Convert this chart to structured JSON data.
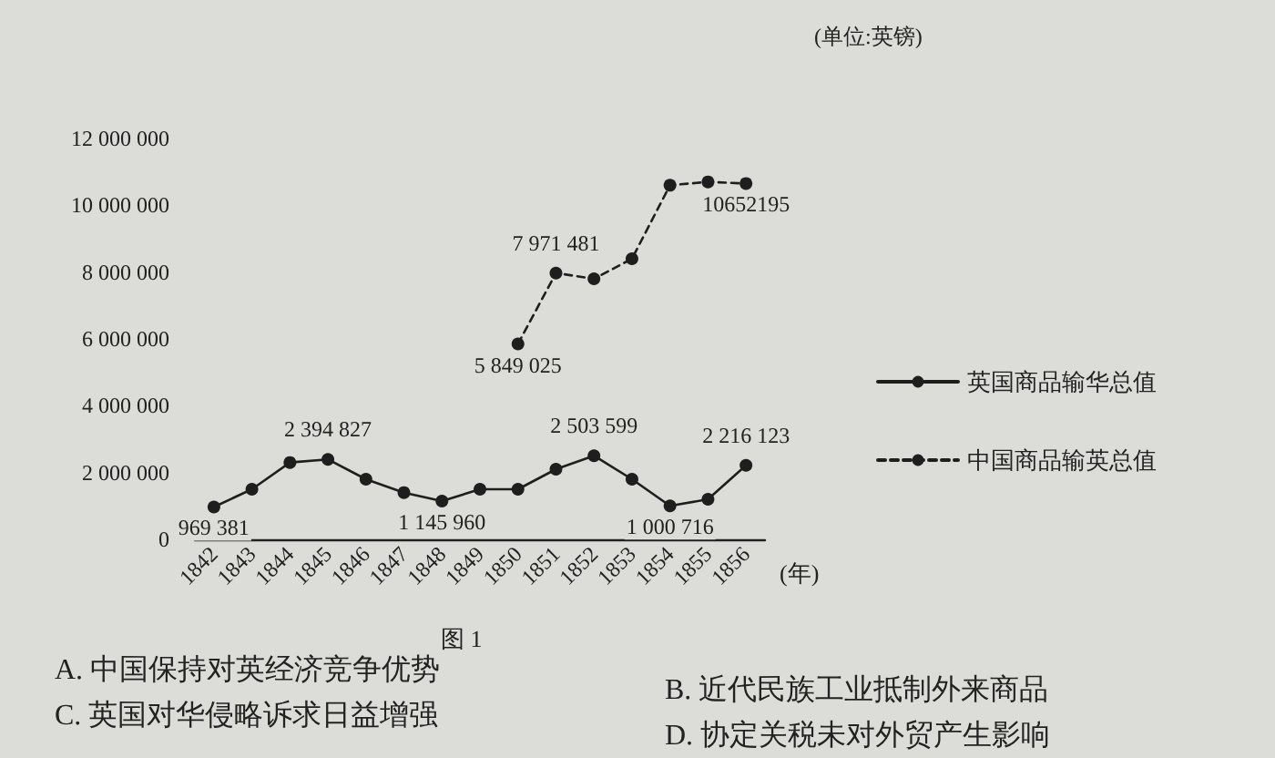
{
  "chart_data": {
    "type": "line",
    "ylabel": "(单位:英镑)",
    "xlabel": "(年)",
    "annotations": [
      "图 1",
      "A. 中国保持对英经济竞争优势",
      "B. 近代民族工业抵制外来商品",
      "C. 英国对华侵略诉求日益增强",
      "D. 协定关税未对外贸产生影响"
    ],
    "categories": [
      "1842",
      "1843",
      "1844",
      "1845",
      "1846",
      "1847",
      "1848",
      "1849",
      "1850",
      "1851",
      "1852",
      "1853",
      "1854",
      "1855",
      "1856"
    ],
    "series": [
      {
        "name": "英国商品输华总值",
        "color": "#1e1e1e",
        "line_style": "solid",
        "values": [
          969381,
          1500000,
          2300000,
          2394827,
          1800000,
          1400000,
          1145960,
          1500000,
          1500000,
          2100000,
          2503599,
          1800000,
          1000716,
          1200000,
          2216123
        ],
        "value_labels": [
          "969 381",
          null,
          null,
          "2 394 827",
          null,
          null,
          "1 145 960",
          null,
          null,
          null,
          "2 503 599",
          null,
          "1 000 716",
          null,
          "2 216 123"
        ]
      },
      {
        "name": "中国商品输英总值",
        "color": "#1e1e1e",
        "line_style": "dashed",
        "values": [
          null,
          null,
          null,
          null,
          null,
          null,
          null,
          null,
          5849025,
          7971481,
          7800000,
          8400000,
          10600000,
          10700000,
          10652195
        ],
        "value_labels": [
          null,
          null,
          null,
          null,
          null,
          null,
          null,
          null,
          "5 849 025",
          "7 971 481",
          null,
          null,
          null,
          null,
          "10652195"
        ]
      }
    ],
    "ylim": [
      0,
      12000000
    ],
    "yticks": [
      0,
      {
        "value": 2000000,
        "label": "2 000 000"
      },
      {
        "value": 4000000,
        "label": "4 000 000"
      },
      {
        "value": 6000000,
        "label": "6 000 000"
      },
      {
        "value": 8000000,
        "label": "8 000 000"
      },
      {
        "value": 10000000,
        "label": "10 000 000"
      },
      {
        "value": 12000000,
        "label": "12 000 000"
      }
    ],
    "grid": false,
    "legend": "right",
    "marker": "circle"
  }
}
